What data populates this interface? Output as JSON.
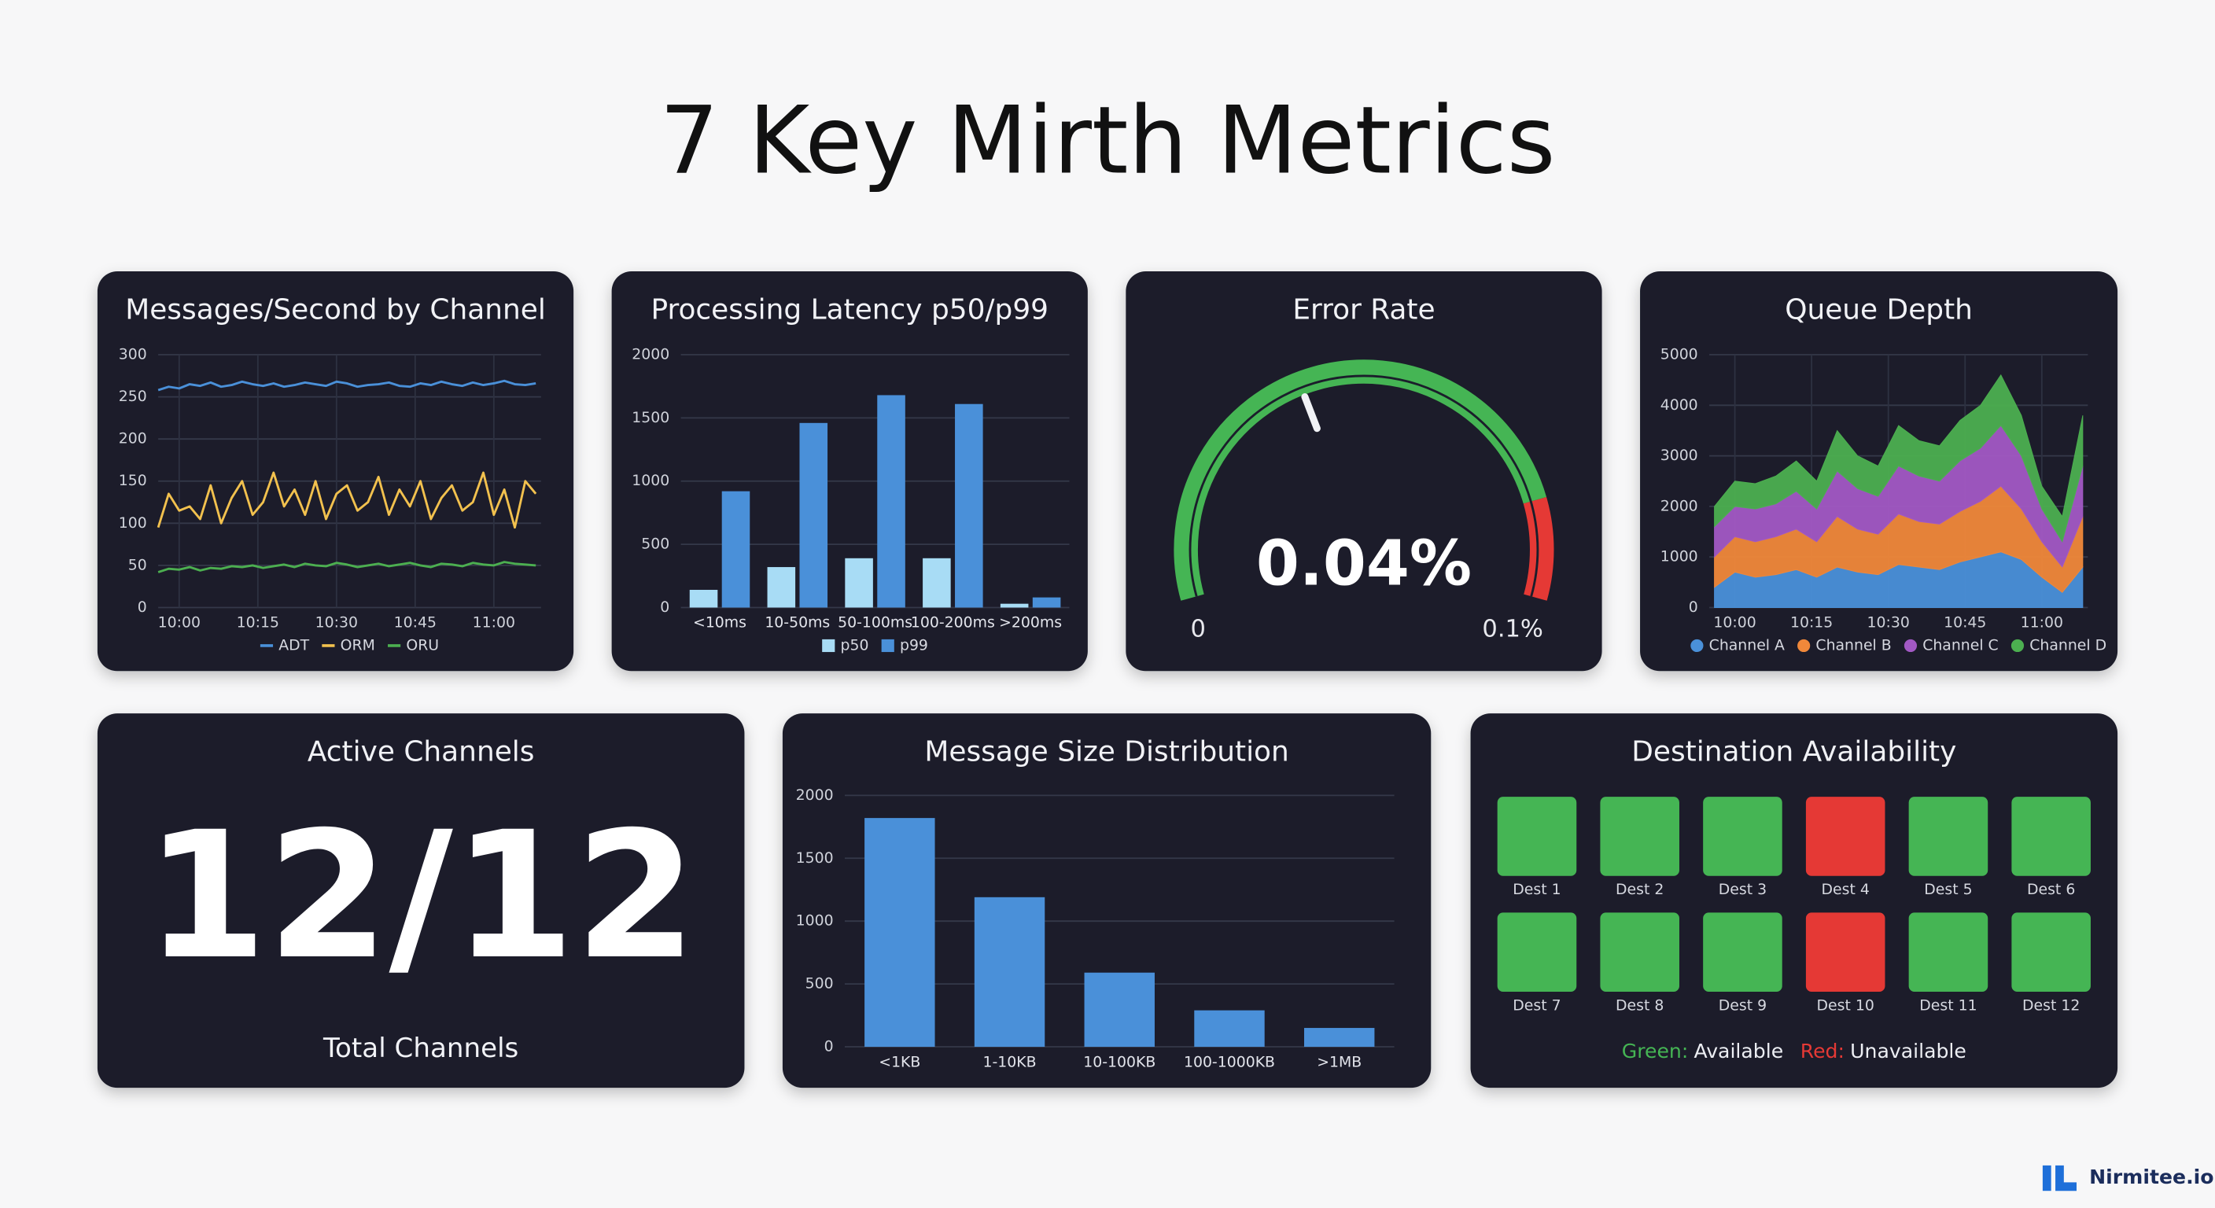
{
  "title": "7 Key Mirth Metrics",
  "brand": "Nirmitee.io",
  "chart_data": [
    {
      "type": "line",
      "title": "Messages/Second by Channel",
      "x": [
        596,
        598,
        600,
        602,
        604,
        606,
        608,
        610,
        612,
        614,
        616,
        618,
        620,
        622,
        624,
        626,
        628,
        630,
        632,
        634,
        636,
        638,
        640,
        642,
        644,
        646,
        648,
        650,
        652,
        654,
        656,
        658,
        660,
        662,
        664,
        666,
        668
      ],
      "xlim": [
        596,
        669
      ],
      "xticks": [
        {
          "value": 600,
          "label": "10:00"
        },
        {
          "value": 615,
          "label": "10:15"
        },
        {
          "value": 630,
          "label": "10:30"
        },
        {
          "value": 645,
          "label": "10:45"
        },
        {
          "value": 660,
          "label": "11:00"
        }
      ],
      "ylim": [
        0,
        300
      ],
      "yticks": [
        0,
        50,
        100,
        150,
        200,
        250,
        300
      ],
      "grid": true,
      "series": [
        {
          "name": "ADT",
          "color": "#4a90d9",
          "values": [
            258,
            262,
            260,
            265,
            263,
            267,
            262,
            264,
            268,
            265,
            263,
            266,
            262,
            264,
            267,
            265,
            263,
            268,
            266,
            262,
            264,
            265,
            267,
            263,
            262,
            266,
            264,
            268,
            265,
            263,
            267,
            264,
            266,
            269,
            265,
            264,
            266
          ]
        },
        {
          "name": "ORM",
          "color": "#f2c14e",
          "values": [
            95,
            135,
            115,
            120,
            105,
            145,
            100,
            130,
            150,
            110,
            125,
            160,
            120,
            140,
            110,
            150,
            105,
            135,
            145,
            115,
            125,
            155,
            110,
            140,
            120,
            150,
            105,
            130,
            145,
            115,
            125,
            160,
            110,
            140,
            95,
            150,
            135
          ]
        },
        {
          "name": "ORU",
          "color": "#4caf50",
          "values": [
            42,
            46,
            45,
            48,
            44,
            47,
            46,
            49,
            48,
            50,
            47,
            49,
            51,
            48,
            52,
            50,
            49,
            53,
            51,
            48,
            50,
            52,
            49,
            51,
            53,
            50,
            48,
            52,
            51,
            49,
            53,
            51,
            50,
            54,
            52,
            51,
            50
          ]
        }
      ]
    },
    {
      "type": "bar",
      "title": "Processing Latency p50/p99",
      "categories": [
        "<10ms",
        "10-50ms",
        "50-100ms",
        "100-200ms",
        ">200ms"
      ],
      "ylim": [
        0,
        2000
      ],
      "yticks": [
        0,
        500,
        1000,
        1500,
        2000
      ],
      "grid": true,
      "series": [
        {
          "name": "p50",
          "color": "#a8dcf5",
          "values": [
            140,
            320,
            390,
            390,
            30
          ]
        },
        {
          "name": "p99",
          "color": "#4a90d9",
          "values": [
            920,
            1460,
            1680,
            1610,
            80
          ]
        }
      ]
    },
    {
      "type": "gauge",
      "title": "Error Rate",
      "value": 0.04,
      "value_label": "0.04%",
      "ylim": [
        0,
        0.1
      ],
      "yticks": [
        0,
        {
          "value": 0.1,
          "label": "0.1%"
        }
      ],
      "bands": [
        {
          "from": 0,
          "to": 0.085,
          "color": "#45b554"
        },
        {
          "from": 0.085,
          "to": 0.1,
          "color": "#e53935"
        }
      ]
    },
    {
      "type": "area",
      "title": "Queue Depth",
      "stacked": true,
      "x": [
        596,
        600,
        604,
        608,
        612,
        616,
        620,
        624,
        628,
        632,
        636,
        640,
        644,
        648,
        652,
        656,
        660,
        664,
        668
      ],
      "xlim": [
        595,
        669
      ],
      "xticks": [
        {
          "value": 600,
          "label": "10:00"
        },
        {
          "value": 615,
          "label": "10:15"
        },
        {
          "value": 630,
          "label": "10:30"
        },
        {
          "value": 645,
          "label": "10:45"
        },
        {
          "value": 660,
          "label": "11:00"
        }
      ],
      "ylim": [
        0,
        5000
      ],
      "yticks": [
        0,
        1000,
        2000,
        3000,
        4000,
        5000
      ],
      "grid": true,
      "series": [
        {
          "name": "Channel A",
          "color": "#4a90d9",
          "values": [
            400,
            700,
            600,
            650,
            750,
            600,
            800,
            700,
            650,
            850,
            800,
            750,
            900,
            1000,
            1100,
            950,
            600,
            300,
            800
          ]
        },
        {
          "name": "Channel B",
          "color": "#f0883a",
          "values": [
            600,
            700,
            700,
            750,
            800,
            700,
            1000,
            850,
            800,
            1000,
            900,
            900,
            1000,
            1100,
            1300,
            1000,
            700,
            500,
            1000
          ]
        },
        {
          "name": "Channel C",
          "color": "#a259c4",
          "values": [
            600,
            600,
            650,
            650,
            750,
            650,
            900,
            800,
            750,
            950,
            900,
            850,
            1000,
            1050,
            1200,
            1050,
            650,
            500,
            1000
          ]
        },
        {
          "name": "Channel D",
          "color": "#4caf50",
          "values": [
            400,
            500,
            500,
            550,
            600,
            550,
            800,
            650,
            600,
            800,
            700,
            700,
            800,
            850,
            1000,
            800,
            450,
            500,
            1000
          ]
        }
      ]
    },
    {
      "type": "stat",
      "title": "Active Channels",
      "value": "12/12",
      "subtitle": "Total Channels"
    },
    {
      "type": "bar",
      "title": "Message Size Distribution",
      "categories": [
        "<1KB",
        "1-10KB",
        "10-100KB",
        "100-1000KB",
        ">1MB"
      ],
      "values": [
        1820,
        1190,
        590,
        290,
        150
      ],
      "color": "#4a90d9",
      "ylim": [
        0,
        2000
      ],
      "yticks": [
        0,
        500,
        1000,
        1500,
        2000
      ],
      "grid": true
    },
    {
      "type": "status-grid",
      "title": "Destination Availability",
      "items": [
        {
          "label": "Dest 1",
          "available": true
        },
        {
          "label": "Dest 2",
          "available": true
        },
        {
          "label": "Dest 3",
          "available": true
        },
        {
          "label": "Dest 4",
          "available": false
        },
        {
          "label": "Dest 5",
          "available": true
        },
        {
          "label": "Dest 6",
          "available": true
        },
        {
          "label": "Dest 7",
          "available": true
        },
        {
          "label": "Dest 8",
          "available": true
        },
        {
          "label": "Dest 9",
          "available": true
        },
        {
          "label": "Dest 10",
          "available": false
        },
        {
          "label": "Dest 11",
          "available": true
        },
        {
          "label": "Dest 12",
          "available": true
        }
      ],
      "legend": [
        {
          "key": "Green:",
          "label": "Available",
          "color": "#45b554"
        },
        {
          "key": "Red:",
          "label": "Unavailable",
          "color": "#e53935"
        }
      ]
    }
  ]
}
